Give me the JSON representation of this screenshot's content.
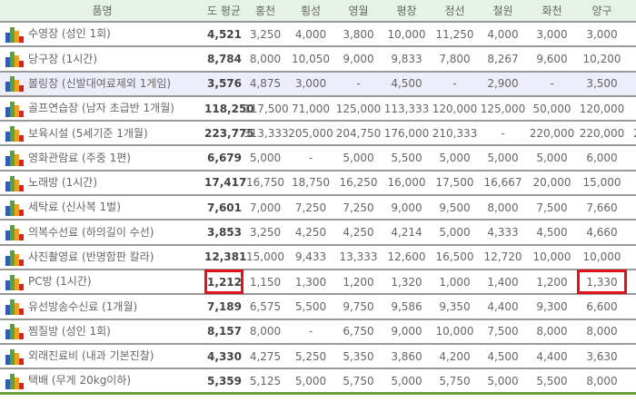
{
  "headers": [
    "품명",
    "도 평균",
    "홍천",
    "횡성",
    "영월",
    "평창",
    "정선",
    "철원",
    "화천",
    "양구",
    ""
  ],
  "rows": [
    {
      "name": "수영장 (성인 1회)",
      "values": [
        "4,521",
        "3,250",
        "4,000",
        "3,800",
        "10,000",
        "11,250",
        "4,000",
        "3,000",
        "3,000",
        ""
      ]
    },
    {
      "name": "당구장 (1시간)",
      "values": [
        "8,784",
        "8,000",
        "10,050",
        "9,000",
        "9,833",
        "7,800",
        "8,267",
        "9,600",
        "10,200",
        ""
      ]
    },
    {
      "name": "볼링장 (신발대여료제외 1게임)",
      "values": [
        "3,576",
        "4,875",
        "3,000",
        "-",
        "4,500",
        "-",
        "2,900",
        "-",
        "3,500",
        ""
      ],
      "highlighted": true
    },
    {
      "name": "골프연습장 (남자 초급반 1개월)",
      "values": [
        "118,250",
        "117,500",
        "71,000",
        "125,000",
        "113,333",
        "120,000",
        "125,000",
        "50,000",
        "120,000",
        ""
      ]
    },
    {
      "name": "보육시설 (5세기준 1개월)",
      "values": [
        "223,775",
        "313,333",
        "205,000",
        "204,750",
        "176,000",
        "210,333",
        "-",
        "220,000",
        "220,000",
        "2"
      ]
    },
    {
      "name": "영화관람료 (주중 1편)",
      "values": [
        "6,679",
        "5,000",
        "-",
        "5,000",
        "5,500",
        "5,000",
        "5,000",
        "5,000",
        "6,000",
        ""
      ]
    },
    {
      "name": "노래방 (1시간)",
      "values": [
        "17,417",
        "16,750",
        "18,750",
        "16,250",
        "16,000",
        "17,500",
        "16,667",
        "20,000",
        "15,000",
        ""
      ]
    },
    {
      "name": "세탁료 (신사복 1벌)",
      "values": [
        "7,601",
        "7,000",
        "7,250",
        "7,250",
        "9,000",
        "9,500",
        "8,000",
        "7,500",
        "7,660",
        ""
      ]
    },
    {
      "name": "의복수선료 (하의길이 수선)",
      "values": [
        "3,853",
        "3,250",
        "4,250",
        "4,250",
        "4,214",
        "5,000",
        "4,333",
        "4,500",
        "4,660",
        ""
      ]
    },
    {
      "name": "사진촬영료 (반명함판 칼라)",
      "values": [
        "12,381",
        "15,000",
        "9,433",
        "13,333",
        "12,600",
        "16,500",
        "12,720",
        "10,000",
        "10,000",
        ""
      ]
    },
    {
      "name": "PC방 (1시간)",
      "values": [
        "1,212",
        "1,150",
        "1,300",
        "1,200",
        "1,320",
        "1,000",
        "1,400",
        "1,200",
        "1,330",
        ""
      ],
      "marked": [
        0,
        8
      ]
    },
    {
      "name": "유선방송수신료 (1개월)",
      "values": [
        "7,189",
        "6,575",
        "5,500",
        "9,750",
        "9,586",
        "9,350",
        "4,400",
        "9,300",
        "6,600",
        ""
      ]
    },
    {
      "name": "찜질방 (성인 1회)",
      "values": [
        "8,157",
        "8,000",
        "-",
        "6,750",
        "9,000",
        "10,000",
        "7,500",
        "8,000",
        "8,000",
        ""
      ]
    },
    {
      "name": "외래진료비 (내과 기본진찰)",
      "values": [
        "4,330",
        "4,275",
        "5,250",
        "5,350",
        "3,860",
        "4,200",
        "4,500",
        "4,400",
        "3,630",
        ""
      ]
    },
    {
      "name": "택배 (무게 20kg이하)",
      "values": [
        "5,359",
        "5,125",
        "5,000",
        "5,750",
        "5,000",
        "5,750",
        "5,000",
        "5,500",
        "8,000",
        ""
      ]
    }
  ],
  "colors": {
    "header_bg": "#e6f2e6",
    "highlight_row": "#eeeefa",
    "mark": "#e0121c"
  },
  "icon": "bar-chart-icon"
}
